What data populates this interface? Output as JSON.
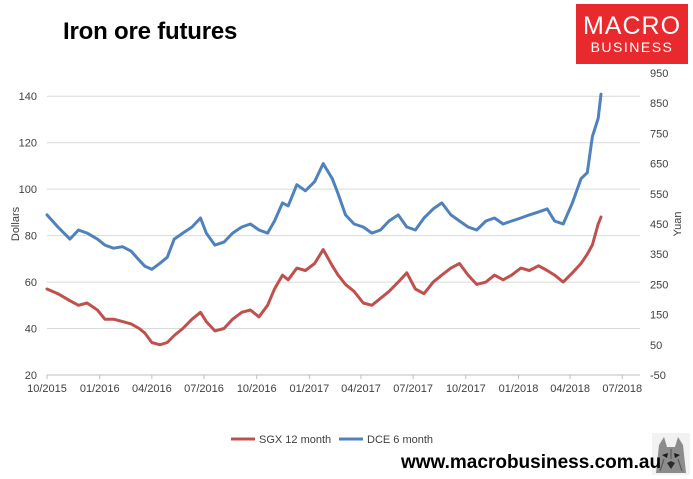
{
  "title": "Iron ore futures",
  "logo": {
    "line1": "MACRO",
    "line2": "BUSINESS"
  },
  "website": "www.macrobusiness.com.au",
  "colors": {
    "sgx": "#c0504d",
    "dce": "#4f81bd",
    "logo_bg": "#e8292d",
    "grid": "#d9d9d9"
  },
  "chart_data": {
    "type": "line",
    "title": "Iron ore futures",
    "xlabel": "",
    "ylabel": "Dollars",
    "y2label": "Yuan",
    "x_tick_labels": [
      "10/2015",
      "01/2016",
      "04/2016",
      "07/2016",
      "10/2016",
      "01/2017",
      "04/2017",
      "07/2017",
      "10/2017",
      "01/2018",
      "04/2018",
      "07/2018"
    ],
    "y_ticks": [
      20,
      40,
      60,
      80,
      100,
      120,
      140
    ],
    "y2_ticks": [
      -50,
      50,
      150,
      250,
      350,
      450,
      550,
      650,
      750,
      850,
      950
    ],
    "ylim": [
      20,
      150
    ],
    "y2lim": [
      -50,
      950
    ],
    "grid": true,
    "legend_position": "bottom",
    "series": [
      {
        "name": "SGX 12 month",
        "axis": "left",
        "x": [
          "2015-10-01",
          "2015-10-20",
          "2015-11-10",
          "2015-11-25",
          "2015-12-10",
          "2015-12-28",
          "2016-01-10",
          "2016-01-25",
          "2016-02-10",
          "2016-02-25",
          "2016-03-10",
          "2016-03-20",
          "2016-04-01",
          "2016-04-15",
          "2016-04-28",
          "2016-05-10",
          "2016-05-25",
          "2016-06-10",
          "2016-06-25",
          "2016-07-05",
          "2016-07-20",
          "2016-08-05",
          "2016-08-20",
          "2016-09-05",
          "2016-09-20",
          "2016-10-05",
          "2016-10-20",
          "2016-11-01",
          "2016-11-15",
          "2016-11-25",
          "2016-12-10",
          "2016-12-25",
          "2017-01-10",
          "2017-01-25",
          "2017-02-10",
          "2017-02-20",
          "2017-03-05",
          "2017-03-20",
          "2017-04-05",
          "2017-04-20",
          "2017-05-05",
          "2017-05-20",
          "2017-06-05",
          "2017-06-20",
          "2017-07-05",
          "2017-07-20",
          "2017-08-05",
          "2017-08-20",
          "2017-09-05",
          "2017-09-20",
          "2017-10-05",
          "2017-10-20",
          "2017-11-05",
          "2017-11-20",
          "2017-12-05",
          "2017-12-20",
          "2018-01-05",
          "2018-01-20",
          "2018-02-05",
          "2018-02-20",
          "2018-03-05",
          "2018-03-20",
          "2018-04-05",
          "2018-04-20",
          "2018-05-01",
          "2018-05-10",
          "2018-05-20",
          "2018-05-25"
        ],
        "values": [
          57,
          55,
          52,
          50,
          51,
          48,
          44,
          44,
          43,
          42,
          40,
          38,
          34,
          33,
          34,
          37,
          40,
          44,
          47,
          43,
          39,
          40,
          44,
          47,
          48,
          45,
          50,
          57,
          63,
          61,
          66,
          65,
          68,
          74,
          67,
          63,
          59,
          56,
          51,
          50,
          53,
          56,
          60,
          64,
          57,
          55,
          60,
          63,
          66,
          68,
          63,
          59,
          60,
          63,
          61,
          63,
          66,
          65,
          67,
          65,
          63,
          60,
          64,
          68,
          72,
          76,
          85,
          88
        ]
      },
      {
        "name": "DCE 6 month",
        "axis": "right",
        "x": [
          "2015-10-01",
          "2015-10-20",
          "2015-11-10",
          "2015-11-25",
          "2015-12-10",
          "2015-12-28",
          "2016-01-10",
          "2016-01-25",
          "2016-02-10",
          "2016-02-25",
          "2016-03-10",
          "2016-03-20",
          "2016-04-01",
          "2016-04-15",
          "2016-04-28",
          "2016-05-10",
          "2016-05-25",
          "2016-06-10",
          "2016-06-25",
          "2016-07-05",
          "2016-07-20",
          "2016-08-05",
          "2016-08-20",
          "2016-09-05",
          "2016-09-20",
          "2016-10-05",
          "2016-10-20",
          "2016-11-01",
          "2016-11-15",
          "2016-11-25",
          "2016-12-10",
          "2016-12-25",
          "2017-01-10",
          "2017-01-25",
          "2017-02-10",
          "2017-02-20",
          "2017-03-05",
          "2017-03-20",
          "2017-04-05",
          "2017-04-20",
          "2017-05-05",
          "2017-05-20",
          "2017-06-05",
          "2017-06-20",
          "2017-07-05",
          "2017-07-20",
          "2017-08-05",
          "2017-08-20",
          "2017-09-05",
          "2017-09-20",
          "2017-10-05",
          "2017-10-20",
          "2017-11-05",
          "2017-11-20",
          "2017-12-05",
          "2017-12-20",
          "2018-01-05",
          "2018-01-20",
          "2018-02-05",
          "2018-02-20",
          "2018-03-05",
          "2018-03-20",
          "2018-04-05",
          "2018-04-20",
          "2018-05-01",
          "2018-05-10",
          "2018-05-20",
          "2018-05-25"
        ],
        "values": [
          480,
          440,
          400,
          430,
          420,
          400,
          380,
          370,
          375,
          360,
          330,
          310,
          300,
          320,
          340,
          400,
          420,
          440,
          470,
          420,
          380,
          390,
          420,
          440,
          450,
          430,
          420,
          460,
          520,
          510,
          580,
          560,
          590,
          650,
          600,
          550,
          480,
          450,
          440,
          420,
          430,
          460,
          480,
          440,
          430,
          470,
          500,
          520,
          480,
          460,
          440,
          430,
          460,
          470,
          450,
          460,
          470,
          480,
          490,
          500,
          460,
          450,
          520,
          600,
          620,
          740,
          800,
          880
        ]
      }
    ]
  }
}
